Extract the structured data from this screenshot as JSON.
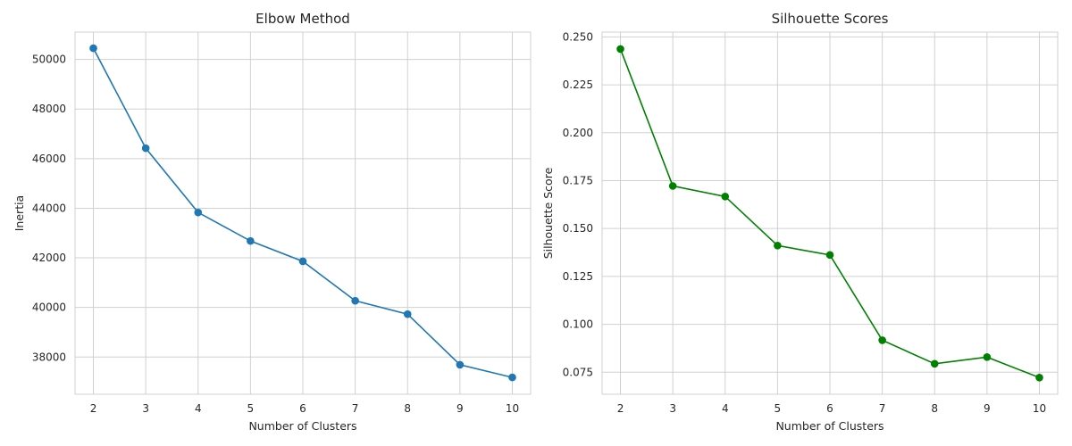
{
  "chart_data": [
    {
      "type": "line",
      "title": "Elbow Method",
      "xlabel": "Number of Clusters",
      "ylabel": "Inertia",
      "x": [
        2,
        3,
        4,
        5,
        6,
        7,
        8,
        9,
        10
      ],
      "series": [
        {
          "values": [
            50450,
            46420,
            43830,
            42680,
            41860,
            40270,
            39730,
            37690,
            37180
          ],
          "color": "#1f77b4"
        }
      ],
      "xlim": [
        1.65,
        10.35
      ],
      "ylim": [
        36500,
        51100
      ],
      "xticks": [
        2,
        3,
        4,
        5,
        6,
        7,
        8,
        9,
        10
      ],
      "yticks": [
        38000,
        40000,
        42000,
        44000,
        46000,
        48000,
        50000
      ],
      "ytick_labels": [
        "38000",
        "40000",
        "42000",
        "44000",
        "46000",
        "48000",
        "50000"
      ],
      "grid": true
    },
    {
      "type": "line",
      "title": "Silhouette Scores",
      "xlabel": "Number of Clusters",
      "ylabel": "Silhouette Score",
      "x": [
        2,
        3,
        4,
        5,
        6,
        7,
        8,
        9,
        10
      ],
      "series": [
        {
          "values": [
            0.2437,
            0.1722,
            0.1667,
            0.1411,
            0.1362,
            0.0917,
            0.0794,
            0.0829,
            0.0722
          ],
          "color": "#008000"
        }
      ],
      "xlim": [
        1.65,
        10.35
      ],
      "ylim": [
        0.0635,
        0.2525
      ],
      "xticks": [
        2,
        3,
        4,
        5,
        6,
        7,
        8,
        9,
        10
      ],
      "yticks": [
        0.075,
        0.1,
        0.125,
        0.15,
        0.175,
        0.2,
        0.225,
        0.25
      ],
      "ytick_labels": [
        "0.075",
        "0.100",
        "0.125",
        "0.150",
        "0.175",
        "0.200",
        "0.225",
        "0.250"
      ],
      "grid": true
    }
  ]
}
